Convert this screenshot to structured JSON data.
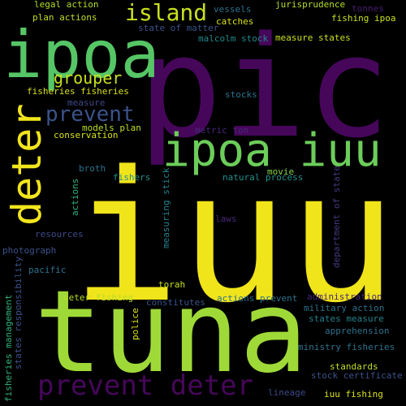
{
  "words": [
    {
      "text": "iuu",
      "color": "#f0e41a"
    },
    {
      "text": "pic",
      "color": "#46075a"
    },
    {
      "text": "tuna",
      "color": "#9fd938"
    },
    {
      "text": "ipoa",
      "color": "#56c566"
    },
    {
      "text": "ipoa iuu",
      "color": "#6ccd5a"
    },
    {
      "text": "deter",
      "color": "#f1e51d"
    },
    {
      "text": "prevent deter",
      "color": "#46075a"
    },
    {
      "text": "island",
      "color": "#c8e020"
    },
    {
      "text": "prevent",
      "color": "#3b528b"
    },
    {
      "text": "grouper",
      "color": "#c8e020"
    },
    {
      "text": "legal action",
      "color": "#b5de2b"
    },
    {
      "text": "plan actions",
      "color": "#bddf26"
    },
    {
      "text": "vessels",
      "color": "#2c728e"
    },
    {
      "text": "catches",
      "color": "#d8e219"
    },
    {
      "text": "jurisprudence",
      "color": "#b5de2b"
    },
    {
      "text": "tonnes",
      "color": "#481f70"
    },
    {
      "text": "fishing ipoa",
      "color": "#c8e020"
    },
    {
      "text": "state of matter",
      "color": "#3b528b"
    },
    {
      "text": "malcolm stock",
      "color": "#238a8d"
    },
    {
      "text": "measure states",
      "color": "#c8e020"
    },
    {
      "text": "fisheries fisheries",
      "color": "#d8e219"
    },
    {
      "text": "measure",
      "color": "#3e4a89"
    },
    {
      "text": "stocks",
      "color": "#2c728e"
    },
    {
      "text": "models plan",
      "color": "#bddf26"
    },
    {
      "text": "conservation",
      "color": "#d8e219"
    },
    {
      "text": "metric ton",
      "color": "#482878"
    },
    {
      "text": "broth",
      "color": "#2c728e"
    },
    {
      "text": "fishers",
      "color": "#21918c"
    },
    {
      "text": "natural process",
      "color": "#21918c"
    },
    {
      "text": "movie",
      "color": "#84d44b"
    },
    {
      "text": "actions",
      "color": "#2fb47c"
    },
    {
      "text": "measuring stick",
      "color": "#26828e"
    },
    {
      "text": "department of state",
      "color": "#443983"
    },
    {
      "text": "laws",
      "color": "#482878"
    },
    {
      "text": "resources",
      "color": "#3e4a89"
    },
    {
      "text": "photograph",
      "color": "#3b528b"
    },
    {
      "text": "pacific",
      "color": "#2c728e"
    },
    {
      "text": "torah",
      "color": "#c8e020"
    },
    {
      "text": "fisheries management",
      "color": "#2fb47c"
    },
    {
      "text": "states responsibility",
      "color": "#3b528b"
    },
    {
      "text": "deter fishing",
      "color": "#b5de2b"
    },
    {
      "text": "constitutes",
      "color": "#3b528b"
    },
    {
      "text": "police",
      "color": "#d8e219"
    },
    {
      "text": "actions prevent",
      "color": "#2c728e"
    },
    {
      "text": "administration",
      "color": "#482878"
    },
    {
      "text": "military action",
      "color": "#2c728e"
    },
    {
      "text": "states measure",
      "color": "#26828e"
    },
    {
      "text": "apprehension",
      "color": "#2c728e"
    },
    {
      "text": "ministry fisheries",
      "color": "#2c728e"
    },
    {
      "text": "standards",
      "color": "#bddf26"
    },
    {
      "text": "stock certificate",
      "color": "#3b528b"
    },
    {
      "text": "lineage",
      "color": "#3e4a89"
    },
    {
      "text": "iuu fishing",
      "color": "#d8e219"
    }
  ]
}
